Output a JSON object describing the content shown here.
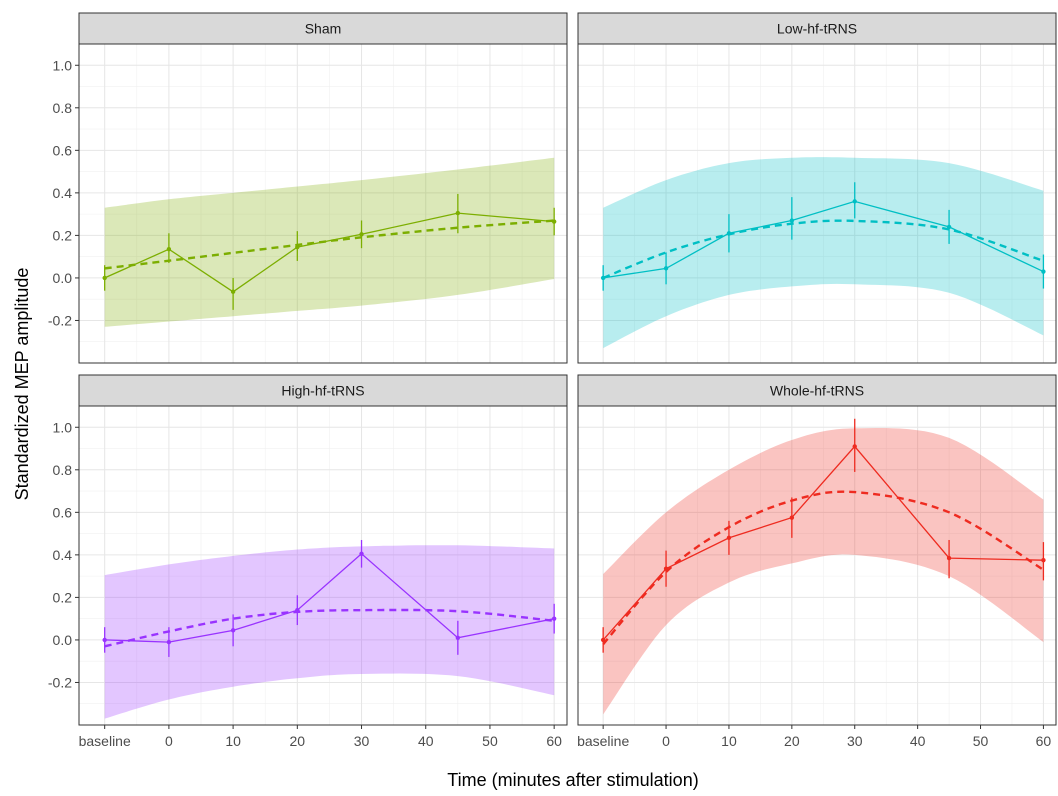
{
  "chart_data": {
    "type": "line",
    "xlabel": "Time (minutes after stimulation)",
    "ylabel": "Standardized MEP amplitude",
    "x_ticks": [
      {
        "label": "baseline",
        "value": -10
      },
      {
        "label": "0",
        "value": 0
      },
      {
        "label": "10",
        "value": 10
      },
      {
        "label": "20",
        "value": 20
      },
      {
        "label": "30",
        "value": 30
      },
      {
        "label": "40",
        "value": 40
      },
      {
        "label": "50",
        "value": 50
      },
      {
        "label": "60",
        "value": 60
      }
    ],
    "xlim": [
      -14,
      62
    ],
    "y_ticks": [
      "-0.2",
      "0.0",
      "0.2",
      "0.4",
      "0.6",
      "0.8",
      "1.0"
    ],
    "ylim": [
      -0.4,
      1.1
    ],
    "grid": true,
    "panels": [
      {
        "title": "Sham",
        "color": "#7cae00",
        "x": [
          -10,
          0,
          10,
          20,
          30,
          45,
          60
        ],
        "y": [
          0.0,
          0.135,
          -0.065,
          0.145,
          0.205,
          0.305,
          0.265
        ],
        "err_low": [
          -0.06,
          0.07,
          -0.15,
          0.08,
          0.14,
          0.21,
          0.2
        ],
        "err_high": [
          0.06,
          0.21,
          0.0,
          0.22,
          0.27,
          0.395,
          0.33
        ],
        "fit": [
          0.045,
          0.081,
          0.118,
          0.155,
          0.191,
          0.236,
          0.27
        ],
        "band_low": [
          -0.23,
          -0.205,
          -0.18,
          -0.155,
          -0.13,
          -0.08,
          -0.005
        ],
        "band_high": [
          0.33,
          0.37,
          0.4,
          0.43,
          0.46,
          0.51,
          0.565
        ]
      },
      {
        "title": "Low-hf-tRNS",
        "color": "#00bfc4",
        "x": [
          -10,
          0,
          10,
          20,
          30,
          45,
          60
        ],
        "y": [
          0.0,
          0.045,
          0.21,
          0.27,
          0.36,
          0.24,
          0.03
        ],
        "err_low": [
          -0.06,
          -0.03,
          0.12,
          0.18,
          0.28,
          0.16,
          -0.05
        ],
        "err_high": [
          0.06,
          0.12,
          0.3,
          0.38,
          0.45,
          0.32,
          0.11
        ],
        "fit": [
          0.0,
          0.12,
          0.205,
          0.255,
          0.268,
          0.228,
          0.08
        ],
        "band_low": [
          -0.33,
          -0.18,
          -0.08,
          -0.04,
          -0.03,
          -0.07,
          -0.27
        ],
        "band_high": [
          0.33,
          0.46,
          0.54,
          0.565,
          0.565,
          0.54,
          0.41
        ]
      },
      {
        "title": "High-hf-tRNS",
        "color": "#9933ff",
        "x": [
          -10,
          0,
          10,
          20,
          30,
          45,
          60
        ],
        "y": [
          0.0,
          -0.01,
          0.045,
          0.14,
          0.405,
          0.01,
          0.1
        ],
        "err_low": [
          -0.06,
          -0.08,
          -0.03,
          0.07,
          0.34,
          -0.07,
          0.03
        ],
        "err_high": [
          0.06,
          0.06,
          0.12,
          0.21,
          0.47,
          0.09,
          0.17
        ],
        "fit": [
          -0.03,
          0.04,
          0.1,
          0.132,
          0.14,
          0.135,
          0.09
        ],
        "band_low": [
          -0.37,
          -0.28,
          -0.22,
          -0.18,
          -0.16,
          -0.17,
          -0.26
        ],
        "band_high": [
          0.305,
          0.355,
          0.395,
          0.425,
          0.44,
          0.445,
          0.43
        ]
      },
      {
        "title": "Whole-hf-tRNS",
        "color": "#ee2b20",
        "x": [
          -10,
          0,
          10,
          20,
          30,
          45,
          60
        ],
        "y": [
          0.0,
          0.335,
          0.48,
          0.575,
          0.91,
          0.385,
          0.375
        ],
        "err_low": [
          -0.06,
          0.25,
          0.4,
          0.48,
          0.79,
          0.29,
          0.28
        ],
        "err_high": [
          0.06,
          0.42,
          0.56,
          0.67,
          1.04,
          0.47,
          0.46
        ],
        "fit": [
          -0.02,
          0.32,
          0.53,
          0.655,
          0.695,
          0.6,
          0.33
        ],
        "band_low": [
          -0.35,
          0.07,
          0.27,
          0.36,
          0.4,
          0.3,
          -0.01
        ],
        "band_high": [
          0.31,
          0.6,
          0.8,
          0.94,
          0.995,
          0.95,
          0.66
        ]
      }
    ]
  }
}
